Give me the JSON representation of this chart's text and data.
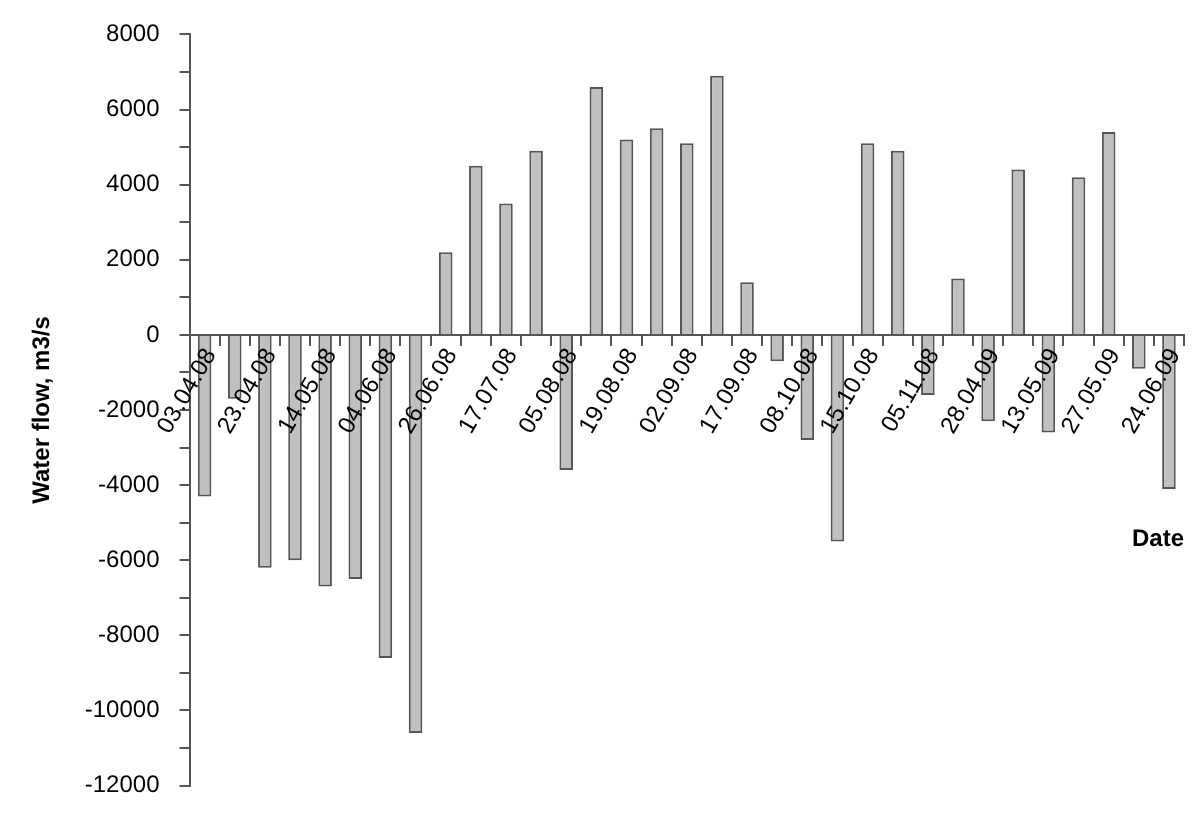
{
  "chart_data": {
    "type": "bar",
    "xlabel": "Date",
    "ylabel": "Water flow, m3/s",
    "categories": [
      "03.04.08",
      null,
      "23.04.08",
      null,
      "14.05.08",
      null,
      "04.06.08",
      null,
      "26.06.08",
      null,
      "17.07.08",
      null,
      "05.08.08",
      null,
      "19.08.08",
      null,
      "02.09.08",
      null,
      "17.09.08",
      null,
      "08.10.08",
      null,
      "15.10.08",
      null,
      "05.11.08",
      null,
      "28.04.09",
      null,
      "13.05.09",
      null,
      "27.05.09",
      null,
      "24.06.09"
    ],
    "values": [
      -4300,
      -1700,
      -6200,
      -6000,
      -6700,
      -6500,
      -8600,
      -10600,
      2200,
      4500,
      3500,
      4900,
      -3600,
      6600,
      5200,
      5500,
      5100,
      6900,
      1400,
      -700,
      -2800,
      -5500,
      5100,
      4900,
      -1600,
      1500,
      -2300,
      4400,
      -2600,
      4200,
      5400,
      -900,
      -4100
    ],
    "color": "#c0c0c0",
    "ylim": [
      -12000,
      8000
    ],
    "yticks": [
      -12000,
      {
        "value": -11000,
        "label": null
      },
      -10000,
      {
        "value": -9000,
        "label": null
      },
      -8000,
      {
        "value": -7000,
        "label": null
      },
      -6000,
      {
        "value": -5000,
        "label": null
      },
      -4000,
      {
        "value": -3000,
        "label": null
      },
      -2000,
      {
        "value": -1000,
        "label": null
      },
      0,
      {
        "value": 1000,
        "label": null
      },
      2000,
      {
        "value": 3000,
        "label": null
      },
      4000,
      {
        "value": 5000,
        "label": null
      },
      6000,
      {
        "value": 7000,
        "label": null
      },
      8000
    ],
    "grid": false,
    "legend": false
  }
}
